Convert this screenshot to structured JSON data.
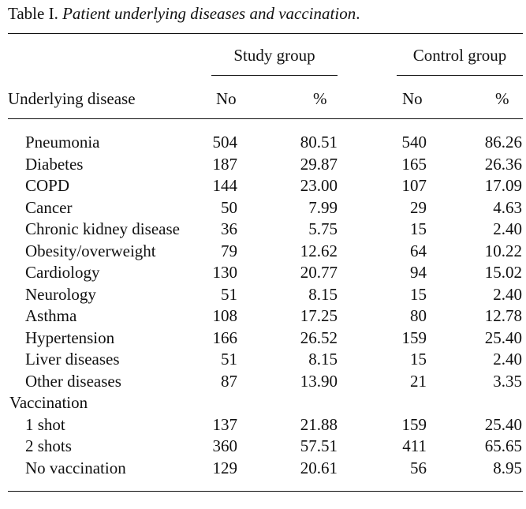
{
  "caption": {
    "label": "Table I.",
    "title": "Patient underlying diseases and vaccination"
  },
  "header": {
    "study_group": "Study group",
    "control_group": "Control group",
    "underlying_disease": "Underlying disease",
    "no": "No",
    "pct": "%"
  },
  "rows": [
    {
      "name": "Pneumonia",
      "indent": true,
      "s_no": "504",
      "s_pct": "80.51",
      "c_no": "540",
      "c_pct": "86.26"
    },
    {
      "name": "Diabetes",
      "indent": true,
      "s_no": "187",
      "s_pct": "29.87",
      "c_no": "165",
      "c_pct": "26.36"
    },
    {
      "name": "COPD",
      "indent": true,
      "s_no": "144",
      "s_pct": "23.00",
      "c_no": "107",
      "c_pct": "17.09"
    },
    {
      "name": "Cancer",
      "indent": true,
      "s_no": "50",
      "s_pct": "7.99",
      "c_no": "29",
      "c_pct": "4.63"
    },
    {
      "name": "Chronic kidney disease",
      "indent": true,
      "s_no": "36",
      "s_pct": "5.75",
      "c_no": "15",
      "c_pct": "2.40"
    },
    {
      "name": "Obesity/overweight",
      "indent": true,
      "s_no": "79",
      "s_pct": "12.62",
      "c_no": "64",
      "c_pct": "10.22"
    },
    {
      "name": "Cardiology",
      "indent": true,
      "s_no": "130",
      "s_pct": "20.77",
      "c_no": "94",
      "c_pct": "15.02"
    },
    {
      "name": "Neurology",
      "indent": true,
      "s_no": "51",
      "s_pct": "8.15",
      "c_no": "15",
      "c_pct": "2.40"
    },
    {
      "name": "Asthma",
      "indent": true,
      "s_no": "108",
      "s_pct": "17.25",
      "c_no": "80",
      "c_pct": "12.78"
    },
    {
      "name": "Hypertension",
      "indent": true,
      "s_no": "166",
      "s_pct": "26.52",
      "c_no": "159",
      "c_pct": "25.40"
    },
    {
      "name": "Liver diseases",
      "indent": true,
      "s_no": "51",
      "s_pct": "8.15",
      "c_no": "15",
      "c_pct": "2.40"
    },
    {
      "name": "Other diseases",
      "indent": true,
      "s_no": "87",
      "s_pct": "13.90",
      "c_no": "21",
      "c_pct": "3.35"
    },
    {
      "name": "Vaccination",
      "indent": false,
      "s_no": "",
      "s_pct": "",
      "c_no": "",
      "c_pct": ""
    },
    {
      "name": "1 shot",
      "indent": true,
      "s_no": "137",
      "s_pct": "21.88",
      "c_no": "159",
      "c_pct": "25.40"
    },
    {
      "name": "2 shots",
      "indent": true,
      "s_no": "360",
      "s_pct": "57.51",
      "c_no": "411",
      "c_pct": "65.65"
    },
    {
      "name": "No vaccination",
      "indent": true,
      "s_no": "129",
      "s_pct": "20.61",
      "c_no": "56",
      "c_pct": "8.95"
    }
  ]
}
